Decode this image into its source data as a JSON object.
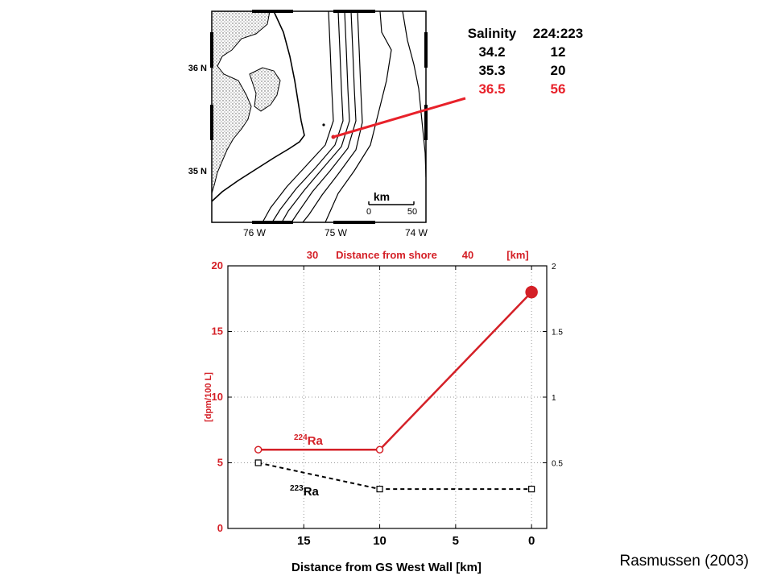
{
  "map": {
    "lat_labels": [
      "36 N",
      "35 N"
    ],
    "lon_labels": [
      "76 W",
      "75 W",
      "74 W"
    ],
    "scale_bar": {
      "unit": "km",
      "ticks": [
        "0",
        "50"
      ]
    }
  },
  "salinity_table": {
    "headers": [
      "Salinity",
      "224:223"
    ],
    "rows": [
      {
        "salinity": "34.2",
        "ratio": "12",
        "color": "#000000"
      },
      {
        "salinity": "35.3",
        "ratio": "20",
        "color": "#000000"
      },
      {
        "salinity": "36.5",
        "ratio": "56",
        "color": "#e8212a"
      }
    ]
  },
  "chart_data": {
    "type": "line",
    "xlabel": "Distance from GS West Wall [km]",
    "x_ticks": [
      "15",
      "10",
      "5",
      "0"
    ],
    "xlim": [
      20,
      -1
    ],
    "top_axis": {
      "tick_30": "30",
      "title": "Distance from shore",
      "tick_40": "40",
      "unit": "[km]"
    },
    "left_axis": {
      "label": "[dpm/100 L]",
      "ylim": [
        0,
        20
      ],
      "ticks": [
        "0",
        "5",
        "10",
        "15",
        "20"
      ],
      "color": "#d42027"
    },
    "right_axis": {
      "ylim": [
        0,
        2
      ],
      "ticks": [
        "0.5",
        "1",
        "1.5",
        "2"
      ]
    },
    "grid": "dotted",
    "series": [
      {
        "name_prefix": "224",
        "name_suffix": "Ra",
        "axis": "left",
        "color": "#d42027",
        "line": "solid",
        "points": [
          {
            "x": 18,
            "y": 6
          },
          {
            "x": 10,
            "y": 6
          },
          {
            "x": 0,
            "y": 18
          }
        ]
      },
      {
        "name_prefix": "223",
        "name_suffix": "Ra",
        "axis": "left",
        "color": "#000000",
        "line": "dashed",
        "points": [
          {
            "x": 18,
            "y": 5
          },
          {
            "x": 10,
            "y": 3
          },
          {
            "x": 0,
            "y": 3
          }
        ]
      }
    ]
  },
  "citation": "Rasmussen (2003)"
}
